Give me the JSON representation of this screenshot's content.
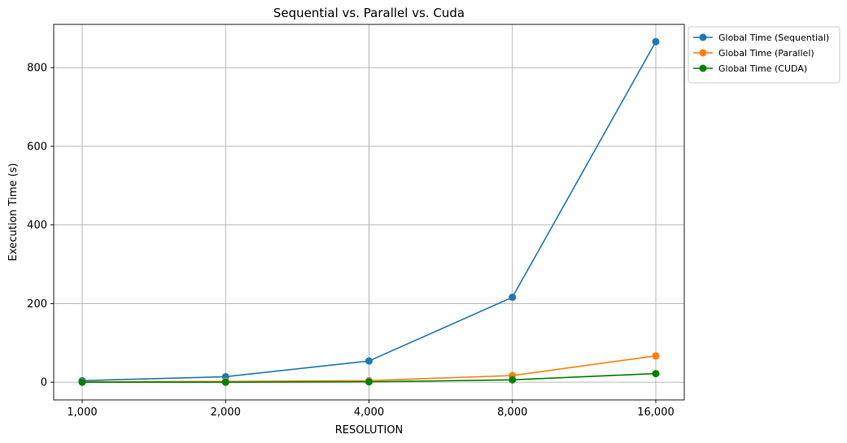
{
  "chart_data": {
    "type": "line",
    "title": "Sequential vs. Parallel vs. Cuda",
    "xlabel": "RESOLUTION",
    "ylabel": "Execution Time (s)",
    "x_categories": [
      "1,000",
      "2,000",
      "4,000",
      "8,000",
      "16,000"
    ],
    "y_ticks": [
      0,
      200,
      400,
      600,
      800
    ],
    "ylim": [
      -45,
      910
    ],
    "grid": true,
    "legend_position": "outside top-right",
    "series": [
      {
        "name": "Global Time (Sequential)",
        "color": "#1f77b4",
        "values": [
          4,
          14,
          54,
          216,
          866
        ]
      },
      {
        "name": "Global Time (Parallel)",
        "color": "#ff7f0e",
        "values": [
          1,
          2,
          4,
          17,
          67
        ]
      },
      {
        "name": "Global Time (CUDA)",
        "color": "#008000",
        "values": [
          0,
          0,
          1,
          6,
          22
        ]
      }
    ]
  }
}
